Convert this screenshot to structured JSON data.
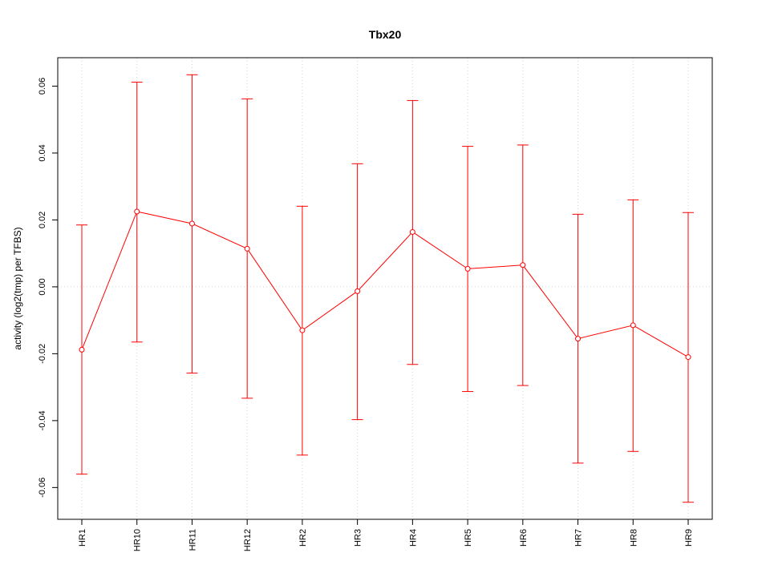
{
  "chart_data": {
    "type": "line",
    "title": "Tbx20",
    "xlabel": "",
    "ylabel": "activity (log2(tmp) per TFBS)",
    "categories": [
      "HR1",
      "HR10",
      "HR11",
      "HR12",
      "HR2",
      "HR3",
      "HR4",
      "HR5",
      "HR6",
      "HR7",
      "HR8",
      "HR9"
    ],
    "series": [
      {
        "values": [
          -0.0188,
          0.0225,
          0.0189,
          0.0114,
          -0.013,
          -0.0013,
          0.0164,
          0.0054,
          0.0065,
          -0.0155,
          -0.0115,
          -0.021
        ],
        "lower": [
          -0.056,
          -0.0165,
          -0.0258,
          -0.0333,
          -0.0503,
          -0.0397,
          -0.0232,
          -0.0313,
          -0.0295,
          -0.0527,
          -0.0492,
          -0.0644
        ],
        "upper": [
          0.0185,
          0.0612,
          0.0634,
          0.0562,
          0.0241,
          0.0368,
          0.0557,
          0.042,
          0.0424,
          0.0217,
          0.026,
          0.0222
        ]
      }
    ],
    "yticks": [
      -0.06,
      -0.04,
      -0.02,
      0.0,
      0.02,
      0.04,
      0.06
    ],
    "ytick_labels": [
      "-0.06",
      "-0.04",
      "-0.02",
      "0.00",
      "0.02",
      "0.04",
      "0.06"
    ],
    "ylim": [
      -0.0695,
      0.0685
    ],
    "grid": true,
    "colors": {
      "series": "#ff0000",
      "grid": "#d3d3d3",
      "axis": "#000000"
    }
  }
}
